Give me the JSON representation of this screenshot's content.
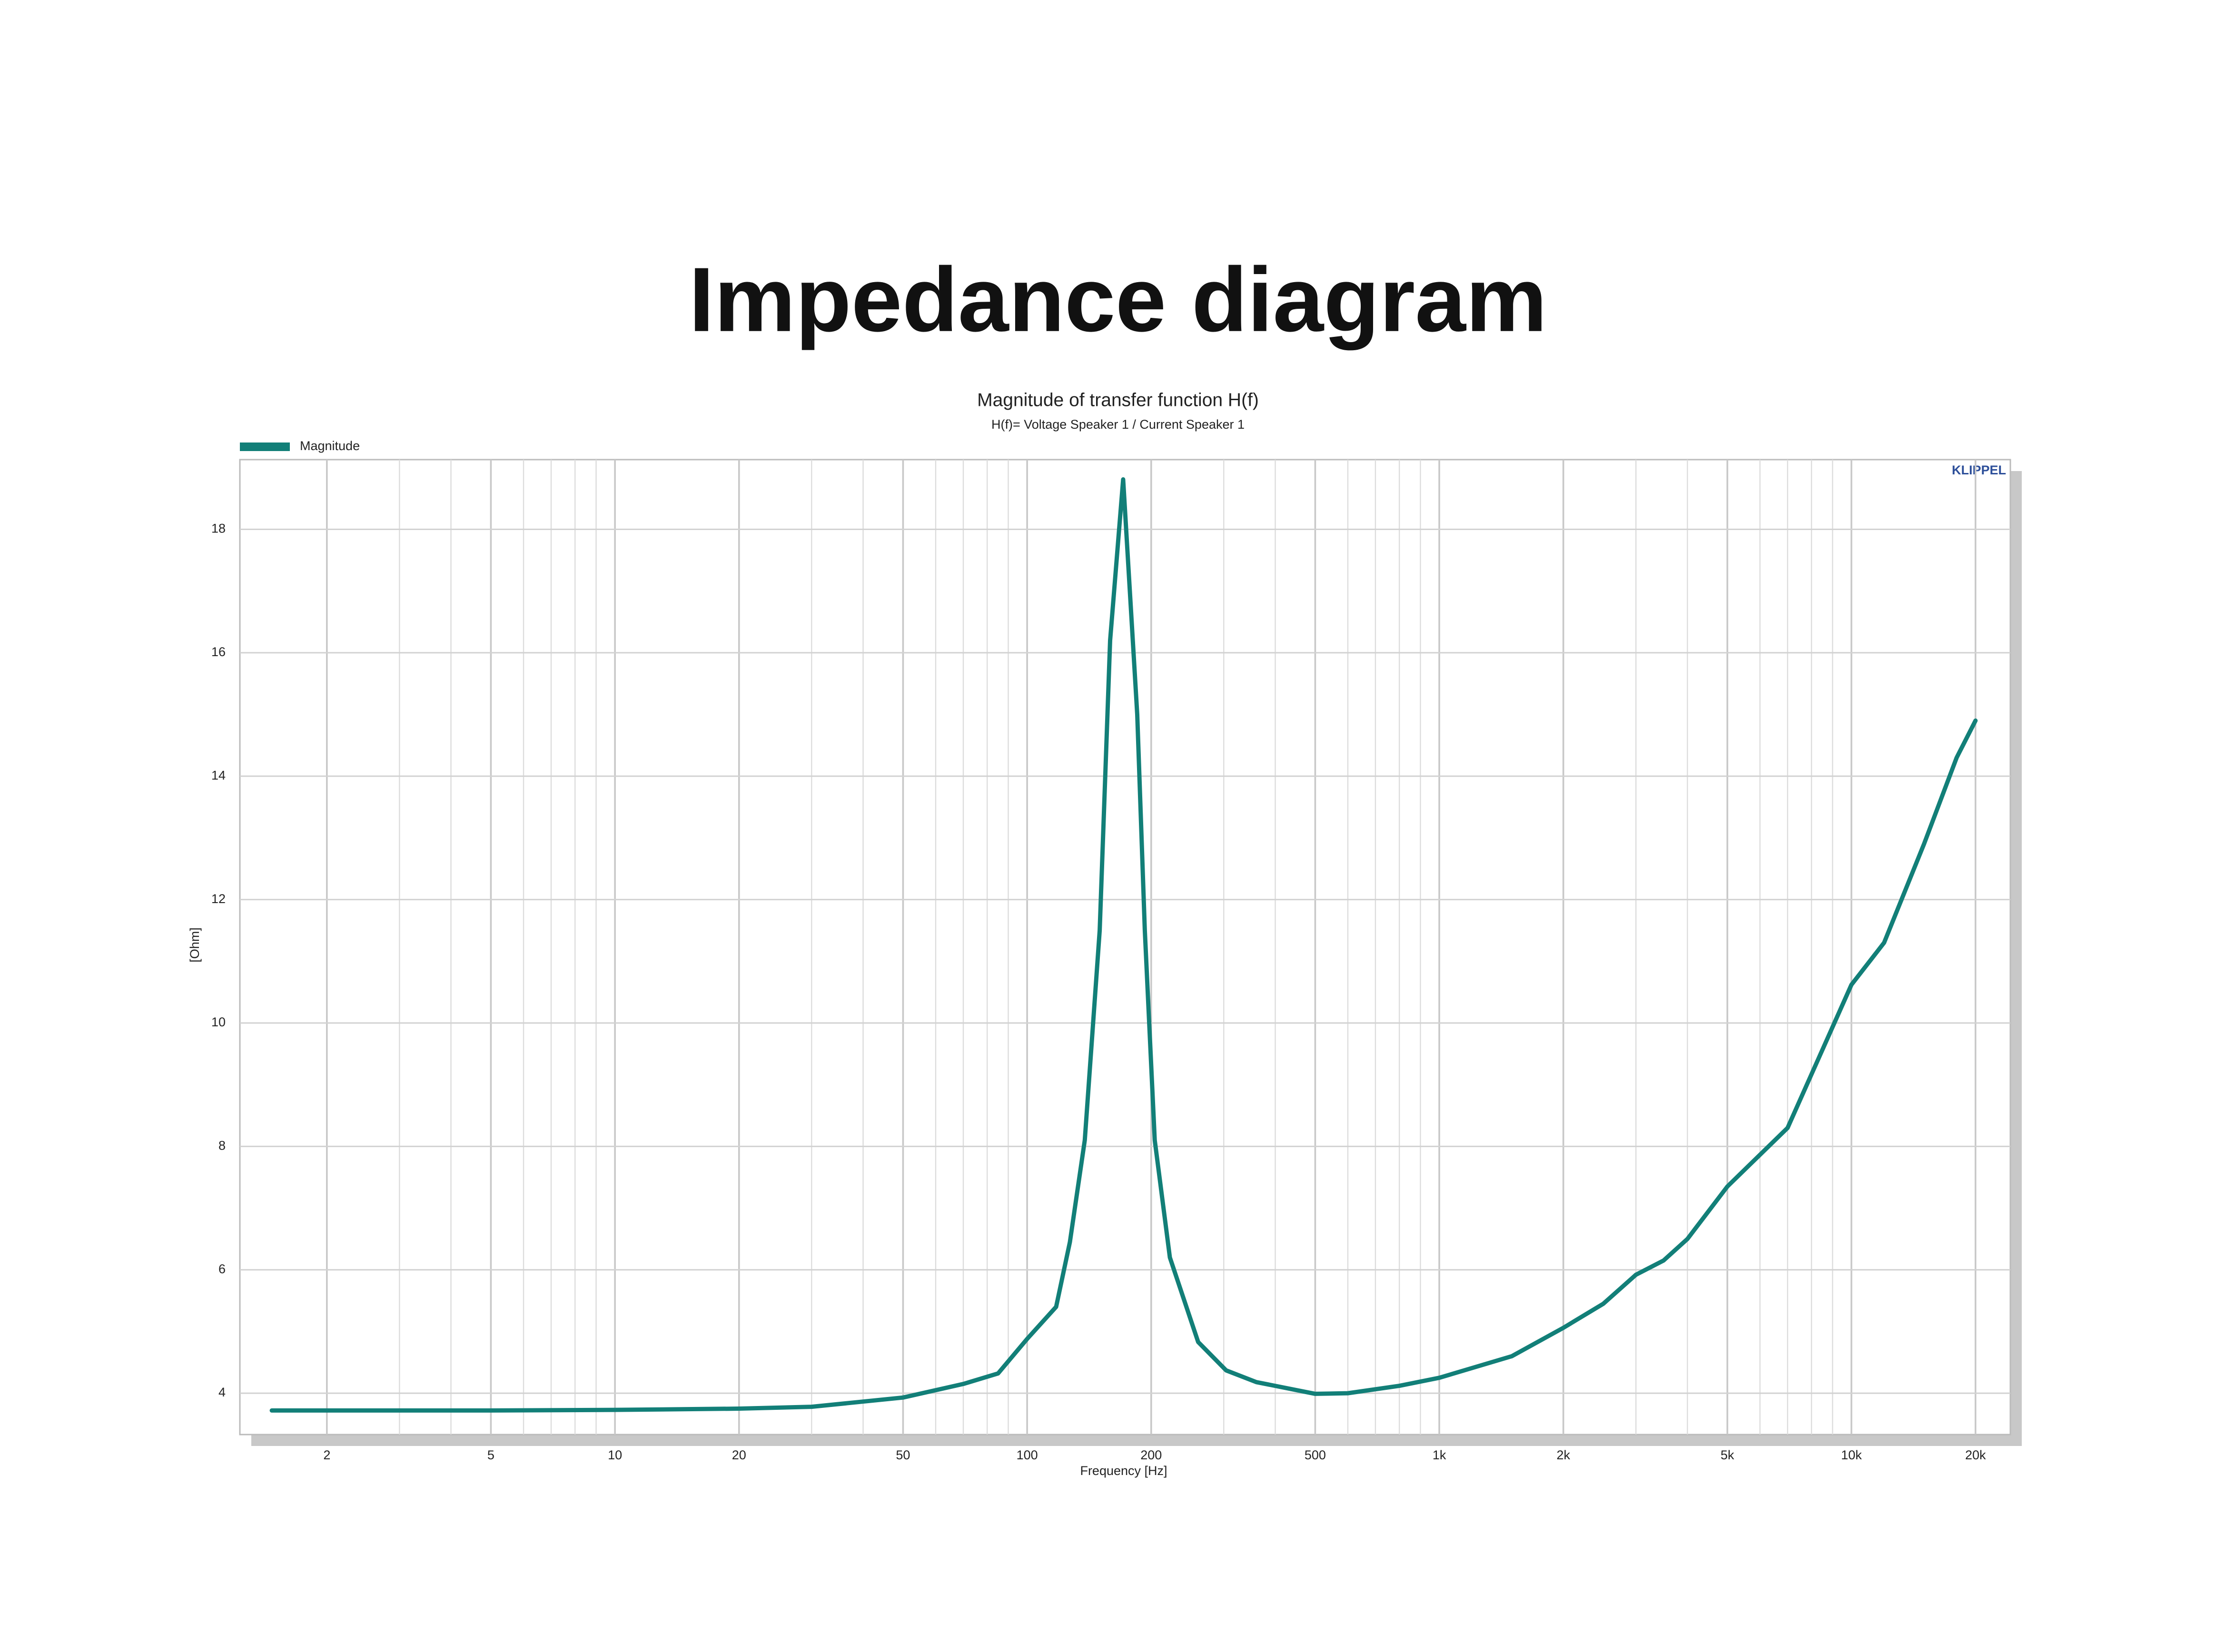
{
  "page_title": "Impedance diagram",
  "chart_data": {
    "type": "line",
    "title": "Magnitude of transfer function H(f)",
    "subtitle": "H(f)= Voltage Speaker 1 / Current Speaker 1",
    "brand": "KLIPPEL",
    "xlabel": "Frequency [Hz]",
    "ylabel": "[Ohm]",
    "xscale": "log",
    "grid": true,
    "legend": "top-left",
    "x": [
      1.47,
      3,
      5,
      10,
      20,
      30,
      50,
      70,
      85,
      100,
      117.6,
      127,
      138,
      150,
      159,
      171,
      185,
      193,
      204,
      222,
      260,
      304,
      360,
      500,
      600,
      800,
      1000,
      1500,
      2000,
      2500,
      3000,
      3500,
      4000,
      5000,
      7000,
      10000,
      12000,
      15000,
      18000,
      20000
    ],
    "series": [
      {
        "name": "Magnitude",
        "color": "#127f78",
        "values": [
          3.72,
          3.72,
          3.72,
          3.73,
          3.75,
          3.78,
          3.93,
          4.15,
          4.32,
          4.88,
          5.4,
          6.45,
          8.1,
          11.5,
          16.2,
          18.81,
          15.0,
          11.5,
          8.1,
          6.2,
          4.83,
          4.37,
          4.18,
          3.99,
          4.0,
          4.12,
          4.25,
          4.6,
          5.06,
          5.45,
          5.92,
          6.15,
          6.5,
          7.35,
          8.3,
          10.62,
          11.3,
          12.9,
          14.3,
          14.9
        ]
      }
    ],
    "xlim": [
      1.23,
      24300
    ],
    "ylim": [
      3.33,
      19.13
    ],
    "xticks": [
      2,
      5,
      10,
      20,
      50,
      100,
      200,
      500,
      {
        "value": 1000,
        "label": "1k"
      },
      {
        "value": 2000,
        "label": "2k"
      },
      {
        "value": 5000,
        "label": "5k"
      },
      {
        "value": 10000,
        "label": "10k"
      },
      {
        "value": 20000,
        "label": "20k"
      }
    ],
    "xticks_minor": [
      3,
      4,
      6,
      7,
      8,
      9,
      30,
      40,
      60,
      70,
      80,
      90,
      300,
      400,
      600,
      700,
      800,
      900,
      3000,
      4000,
      6000,
      7000,
      8000,
      9000
    ],
    "yticks": [
      4,
      6,
      8,
      10,
      12,
      14,
      16,
      18
    ]
  }
}
